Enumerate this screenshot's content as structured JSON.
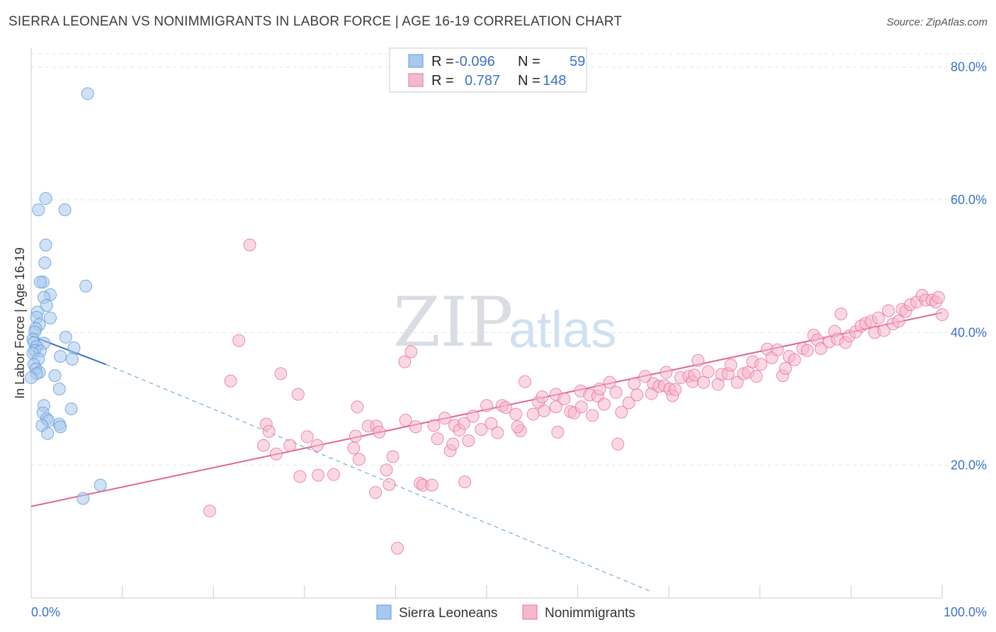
{
  "title": "SIERRA LEONEAN VS NONIMMIGRANTS IN LABOR FORCE | AGE 16-19 CORRELATION CHART",
  "source": "Source: ZipAtlas.com",
  "watermark": {
    "zip": "ZIP",
    "atlas": "atlas"
  },
  "chart_data": {
    "type": "scatter",
    "ylabel": "In Labor Force | Age 16-19",
    "xlim": [
      0,
      100
    ],
    "ylim": [
      0,
      82
    ],
    "x_tick_labels": [
      "0.0%",
      "100.0%"
    ],
    "y_ticks": [
      20,
      40,
      60,
      80
    ],
    "y_tick_labels": [
      "20.0%",
      "40.0%",
      "60.0%",
      "80.0%"
    ],
    "grid": true,
    "legend_position": "top-center",
    "legend": [
      {
        "r_label": "R =",
        "r_value": "-0.096",
        "n_label": "N =",
        "n_value": "59"
      },
      {
        "r_label": "R =",
        "r_value": "0.787",
        "n_label": "N =",
        "n_value": "148"
      }
    ],
    "series": [
      {
        "name": "Sierra Leoneans",
        "color": "#5b9bd5",
        "fill": "#a9c8ef",
        "trend": {
          "x0": 0,
          "y0": 39.5,
          "x1": 8.2,
          "y1": 35.2,
          "dash_x1": 68,
          "dash_y1": 1
        },
        "points": [
          [
            6.2,
            76
          ],
          [
            1.6,
            60.2
          ],
          [
            0.8,
            58.5
          ],
          [
            3.7,
            58.5
          ],
          [
            1.6,
            53.2
          ],
          [
            1.5,
            50.5
          ],
          [
            1.3,
            47.6
          ],
          [
            1.0,
            47.6
          ],
          [
            6.0,
            47.0
          ],
          [
            2.1,
            45.7
          ],
          [
            1.4,
            45.3
          ],
          [
            1.7,
            44.1
          ],
          [
            0.7,
            43.1
          ],
          [
            0.6,
            42.3
          ],
          [
            2.1,
            42.2
          ],
          [
            0.9,
            41.2
          ],
          [
            0.5,
            40.6
          ],
          [
            0.4,
            40.1
          ],
          [
            3.8,
            39.3
          ],
          [
            0.2,
            39.0
          ],
          [
            0.3,
            38.5
          ],
          [
            1.4,
            38.4
          ],
          [
            0.6,
            37.9
          ],
          [
            4.7,
            37.7
          ],
          [
            0.4,
            37.3
          ],
          [
            1.0,
            37.2
          ],
          [
            0.2,
            36.9
          ],
          [
            3.2,
            36.4
          ],
          [
            4.5,
            36.0
          ],
          [
            0.8,
            36.0
          ],
          [
            0.3,
            35.2
          ],
          [
            0.5,
            34.5
          ],
          [
            0.9,
            34.0
          ],
          [
            0.6,
            33.8
          ],
          [
            2.6,
            33.5
          ],
          [
            0,
            33.2
          ],
          [
            3.1,
            31.5
          ],
          [
            1.4,
            29.0
          ],
          [
            4.4,
            28.5
          ],
          [
            1.3,
            27.9
          ],
          [
            1.7,
            27.0
          ],
          [
            1.9,
            26.7
          ],
          [
            3.1,
            26.2
          ],
          [
            3.2,
            25.8
          ],
          [
            1.2,
            26.0
          ],
          [
            1.8,
            24.8
          ],
          [
            7.6,
            17.0
          ],
          [
            5.7,
            15.0
          ]
        ]
      },
      {
        "name": "Nonimmigrants",
        "color": "#e8709a",
        "fill": "#f5b8cc",
        "trend": {
          "x0": 0,
          "y0": 13.8,
          "x1": 100,
          "y1": 43
        },
        "points": [
          [
            24,
            53.2
          ],
          [
            22.8,
            38.8
          ],
          [
            27.4,
            33.8
          ],
          [
            21.9,
            32.7
          ],
          [
            29.3,
            30.7
          ],
          [
            25.5,
            23.0
          ],
          [
            25.8,
            26.2
          ],
          [
            26.1,
            25.1
          ],
          [
            26.9,
            21.7
          ],
          [
            28.4,
            23.0
          ],
          [
            30.3,
            24.3
          ],
          [
            29.5,
            18.3
          ],
          [
            31.4,
            23.0
          ],
          [
            31.5,
            18.5
          ],
          [
            33.2,
            18.6
          ],
          [
            19.6,
            13.1
          ],
          [
            35.4,
            22.6
          ],
          [
            35.8,
            28.8
          ],
          [
            35.6,
            24.4
          ],
          [
            36.0,
            20.9
          ],
          [
            37.0,
            25.9
          ],
          [
            37.9,
            25.9
          ],
          [
            38.2,
            25.0
          ],
          [
            37.8,
            15.9
          ],
          [
            39.0,
            19.3
          ],
          [
            39.3,
            17.1
          ],
          [
            39.7,
            21.3
          ],
          [
            40.2,
            7.5
          ],
          [
            41.0,
            35.6
          ],
          [
            41.1,
            26.8
          ],
          [
            41.7,
            37.1
          ],
          [
            42.2,
            25.8
          ],
          [
            42.7,
            17.3
          ],
          [
            43.0,
            17.0
          ],
          [
            44.0,
            17.0
          ],
          [
            44.2,
            26.0
          ],
          [
            44.6,
            24.0
          ],
          [
            45.4,
            27.1
          ],
          [
            46.0,
            22.2
          ],
          [
            46.3,
            23.2
          ],
          [
            46.5,
            26.0
          ],
          [
            47.0,
            25.3
          ],
          [
            47.5,
            26.3
          ],
          [
            47.6,
            17.5
          ],
          [
            48.0,
            23.7
          ],
          [
            48.5,
            27.4
          ],
          [
            49.4,
            25.4
          ],
          [
            50.0,
            29.0
          ],
          [
            50.5,
            26.3
          ],
          [
            51.2,
            24.9
          ],
          [
            51.7,
            29.0
          ],
          [
            52.1,
            28.7
          ],
          [
            53.2,
            27.7
          ],
          [
            53.7,
            25.2
          ],
          [
            53.4,
            25.8
          ],
          [
            54.2,
            32.6
          ],
          [
            55.1,
            27.7
          ],
          [
            55.7,
            29.5
          ],
          [
            56.1,
            30.3
          ],
          [
            56.3,
            28.2
          ],
          [
            57.6,
            30.7
          ],
          [
            57.6,
            28.8
          ],
          [
            57.8,
            25.0
          ],
          [
            58.5,
            30.0
          ],
          [
            59.2,
            28.1
          ],
          [
            59.6,
            27.9
          ],
          [
            60.3,
            31.2
          ],
          [
            60.4,
            28.8
          ],
          [
            61.3,
            30.6
          ],
          [
            61.6,
            27.5
          ],
          [
            62.2,
            30.4
          ],
          [
            62.4,
            31.5
          ],
          [
            62.9,
            29.2
          ],
          [
            63.5,
            32.5
          ],
          [
            64.2,
            31.0
          ],
          [
            64.4,
            23.2
          ],
          [
            64.8,
            28.0
          ],
          [
            65.6,
            29.4
          ],
          [
            66.2,
            32.3
          ],
          [
            66.5,
            30.6
          ],
          [
            67.4,
            33.4
          ],
          [
            68.1,
            30.8
          ],
          [
            68.3,
            32.3
          ],
          [
            68.9,
            31.9
          ],
          [
            69.7,
            34.0
          ],
          [
            69.5,
            32.0
          ],
          [
            70.1,
            31.5
          ],
          [
            70.4,
            30.5
          ],
          [
            70.7,
            31.4
          ],
          [
            71.3,
            33.2
          ],
          [
            72.2,
            33.4
          ],
          [
            72.6,
            32.6
          ],
          [
            72.8,
            33.6
          ],
          [
            73.2,
            35.8
          ],
          [
            73.8,
            32.5
          ],
          [
            74.3,
            34.1
          ],
          [
            75.4,
            32.2
          ],
          [
            75.8,
            33.7
          ],
          [
            76.5,
            33.8
          ],
          [
            76.8,
            35.1
          ],
          [
            77.5,
            32.5
          ],
          [
            78.2,
            33.8
          ],
          [
            78.7,
            34.0
          ],
          [
            79.2,
            35.6
          ],
          [
            79.6,
            33.4
          ],
          [
            80.1,
            35.2
          ],
          [
            80.8,
            37.5
          ],
          [
            81.3,
            36.2
          ],
          [
            81.9,
            37.4
          ],
          [
            82.5,
            33.5
          ],
          [
            82.8,
            34.6
          ],
          [
            83.2,
            36.4
          ],
          [
            83.8,
            35.9
          ],
          [
            84.7,
            37.6
          ],
          [
            85.2,
            37.3
          ],
          [
            85.9,
            39.6
          ],
          [
            86.3,
            38.9
          ],
          [
            86.7,
            37.6
          ],
          [
            87.6,
            38.6
          ],
          [
            88.2,
            40.2
          ],
          [
            88.5,
            39.0
          ],
          [
            88.9,
            42.8
          ],
          [
            89.4,
            38.5
          ],
          [
            89.8,
            39.5
          ],
          [
            90.5,
            40.1
          ],
          [
            91.1,
            41.0
          ],
          [
            91.6,
            41.4
          ],
          [
            92.2,
            41.7
          ],
          [
            92.6,
            40.0
          ],
          [
            93.0,
            42.2
          ],
          [
            93.6,
            40.3
          ],
          [
            94.1,
            43.3
          ],
          [
            94.6,
            41.3
          ],
          [
            95.2,
            41.7
          ],
          [
            95.6,
            43.5
          ],
          [
            96.0,
            43.2
          ],
          [
            96.5,
            44.2
          ],
          [
            97.2,
            44.6
          ],
          [
            97.8,
            45.6
          ],
          [
            98.2,
            44.9
          ],
          [
            98.9,
            44.9
          ],
          [
            99.3,
            44.6
          ],
          [
            99.6,
            45.3
          ],
          [
            100.0,
            42.7
          ]
        ]
      }
    ]
  },
  "bottom_legend": [
    "Sierra Leoneans",
    "Nonimmigrants"
  ]
}
